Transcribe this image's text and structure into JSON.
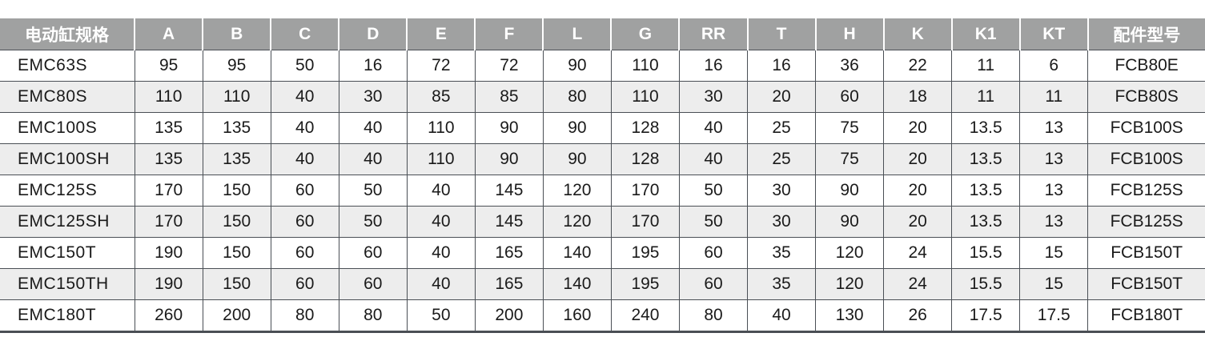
{
  "table": {
    "headers": [
      "电动缸规格",
      "A",
      "B",
      "C",
      "D",
      "E",
      "F",
      "L",
      "G",
      "RR",
      "T",
      "H",
      "K",
      "K1",
      "KT",
      "配件型号"
    ],
    "rows": [
      [
        "EMC63S",
        "95",
        "95",
        "50",
        "16",
        "72",
        "72",
        "90",
        "110",
        "16",
        "16",
        "36",
        "22",
        "11",
        "6",
        "FCB80E"
      ],
      [
        "EMC80S",
        "110",
        "110",
        "40",
        "30",
        "85",
        "85",
        "80",
        "110",
        "30",
        "20",
        "60",
        "18",
        "11",
        "11",
        "FCB80S"
      ],
      [
        "EMC100S",
        "135",
        "135",
        "40",
        "40",
        "110",
        "90",
        "90",
        "128",
        "40",
        "25",
        "75",
        "20",
        "13.5",
        "13",
        "FCB100S"
      ],
      [
        "EMC100SH",
        "135",
        "135",
        "40",
        "40",
        "110",
        "90",
        "90",
        "128",
        "40",
        "25",
        "75",
        "20",
        "13.5",
        "13",
        "FCB100S"
      ],
      [
        "EMC125S",
        "170",
        "150",
        "60",
        "50",
        "40",
        "145",
        "120",
        "170",
        "50",
        "30",
        "90",
        "20",
        "13.5",
        "13",
        "FCB125S"
      ],
      [
        "EMC125SH",
        "170",
        "150",
        "60",
        "50",
        "40",
        "145",
        "120",
        "170",
        "50",
        "30",
        "90",
        "20",
        "13.5",
        "13",
        "FCB125S"
      ],
      [
        "EMC150T",
        "190",
        "150",
        "60",
        "60",
        "40",
        "165",
        "140",
        "195",
        "60",
        "35",
        "120",
        "24",
        "15.5",
        "15",
        "FCB150T"
      ],
      [
        "EMC150TH",
        "190",
        "150",
        "60",
        "60",
        "40",
        "165",
        "140",
        "195",
        "60",
        "35",
        "120",
        "24",
        "15.5",
        "15",
        "FCB150T"
      ],
      [
        "EMC180T",
        "260",
        "200",
        "80",
        "80",
        "50",
        "200",
        "160",
        "240",
        "80",
        "40",
        "130",
        "26",
        "17.5",
        "17.5",
        "FCB180T"
      ]
    ],
    "colors": {
      "header_bg": "#a0a1a1",
      "alt_row_bg": "#ededed",
      "border": "#4a4f55"
    }
  }
}
